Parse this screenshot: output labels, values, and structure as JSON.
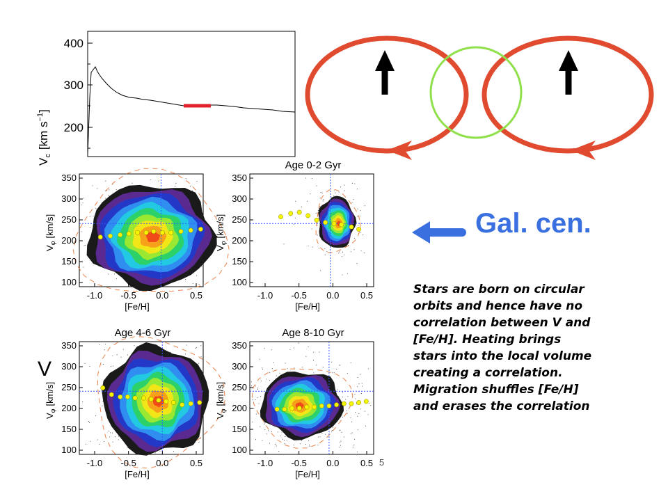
{
  "rotation_curve": {
    "y_title": "V",
    "y_sub": "c",
    "y_unit": "[km s",
    "y_exp": "−1",
    "y_close": "]",
    "y_ticks": [
      "400",
      "300",
      "200"
    ]
  },
  "panels": [
    {
      "title": "",
      "x_label": "[Fe/H]",
      "y_label_v": "V",
      "y_label_phi": "φ",
      "y_label_unit": "[km/s]",
      "y_ticks": [
        "350",
        "300",
        "250",
        "200",
        "150",
        "100"
      ],
      "x_ticks": [
        "-1.0",
        "-0.5",
        "0.0",
        "0.5"
      ]
    },
    {
      "title": "Age 0-2 Gyr",
      "x_label": "[Fe/H]",
      "y_label_v": "V",
      "y_label_phi": "φ",
      "y_label_unit": "[km/s]",
      "y_ticks": [
        "350",
        "300",
        "250",
        "200",
        "150",
        "100"
      ],
      "x_ticks": [
        "-1.0",
        "-0.5",
        "0.0",
        "0.5"
      ]
    },
    {
      "title": "Age 4-6 Gyr",
      "x_label": "[Fe/H]",
      "y_label_v": "V",
      "y_label_phi": "φ",
      "y_label_unit": "[km/s]",
      "y_ticks": [
        "350",
        "300",
        "250",
        "200",
        "150",
        "100"
      ],
      "x_ticks": [
        "-1.0",
        "-0.5",
        "0.0",
        "0.5"
      ]
    },
    {
      "title": "Age 8-10 Gyr",
      "x_label": "[Fe/H]",
      "y_label_v": "V",
      "y_label_phi": "φ",
      "y_label_unit": "[km/s]",
      "y_ticks": [
        "350",
        "300",
        "250",
        "200",
        "150",
        "100"
      ],
      "x_ticks": [
        "-1.0",
        "-0.5",
        "0.0",
        "0.5"
      ]
    }
  ],
  "big_v_label": "V",
  "page_number": "5",
  "galactic_center_label": "Gal. cen.",
  "caption_lines": [
    "Stars are born on circular",
    "orbits and hence have no",
    "correlation between V and",
    "[Fe/H].  Heating brings",
    "stars into the local volume",
    "creating a correlation.",
    "Migration shuffles [Fe/H]",
    "and erases the correlation"
  ],
  "colors": {
    "orbit": "#e04a2f",
    "local_volume": "#8fe04a",
    "gal_cen": "#3a6fe0",
    "solar_marker": "#e0202a",
    "ridge_points": "#f5f500",
    "dashed_contour": "#e8834a",
    "sun_cross": "#3355ff",
    "contour_levels": [
      "#1a1a1a",
      "#5b2a91",
      "#2438c8",
      "#2f8ef0",
      "#23c9e2",
      "#2cd16a",
      "#9ae832",
      "#f2e619",
      "#f7a01a",
      "#f04a18"
    ]
  }
}
